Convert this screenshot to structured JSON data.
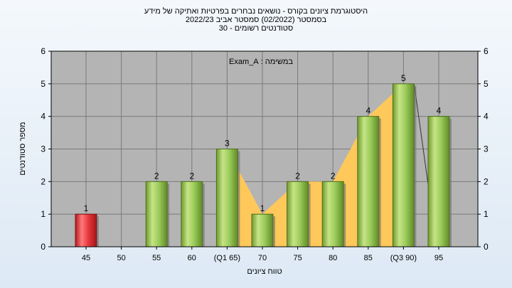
{
  "chart_data": {
    "type": "bar",
    "title_lines": [
      "היסטוגרמת ציונים בקורס - נושאים נבחרים בפרטיות ואתיקה של מידע",
      "בסמסטר  (02/2022)  סמסטר אביב 2022/23",
      "סטודנטים רשומים - 30"
    ],
    "annotation": "במשימה : Exam_A",
    "xlabel": "טווח ציונים",
    "ylabel": "מספר סטודנטים",
    "ylim": [
      0,
      6
    ],
    "yticks": [
      0,
      1,
      2,
      3,
      4,
      5,
      6
    ],
    "grid": true,
    "categories": [
      "45",
      "50",
      "55",
      "60",
      "(Q1 65)",
      "70",
      "75",
      "80",
      "85",
      "(Q3 90)",
      "95"
    ],
    "values": [
      1,
      0,
      2,
      2,
      3,
      1,
      2,
      2,
      4,
      5,
      4
    ],
    "highlight_categories": [
      "45"
    ],
    "colors": {
      "bar": "#9ccc5c",
      "highlight_bar": "#e8383c",
      "area": "#ffc85a",
      "plot_background": "#b4b4b4"
    }
  }
}
